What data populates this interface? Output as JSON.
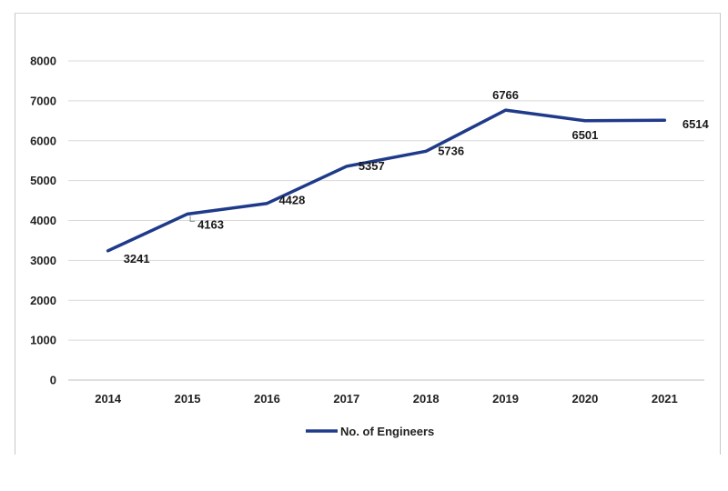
{
  "chart_data": {
    "type": "line",
    "categories": [
      "2014",
      "2015",
      "2016",
      "2017",
      "2018",
      "2019",
      "2020",
      "2021"
    ],
    "series": [
      {
        "name": "No. of Engineers",
        "values": [
          3241,
          4163,
          4428,
          5357,
          5736,
          6766,
          6501,
          6514
        ],
        "color": "#1f3a8a"
      }
    ],
    "ylim": [
      0,
      8000
    ],
    "yticks": [
      "0",
      "1000",
      "2000",
      "3000",
      "4000",
      "5000",
      "6000",
      "7000",
      "8000"
    ],
    "grid": true,
    "legend": "bottom",
    "data_labels": [
      "3241",
      "4163",
      "4428",
      "5357",
      "5736",
      "6766",
      "6501",
      "6514"
    ]
  }
}
